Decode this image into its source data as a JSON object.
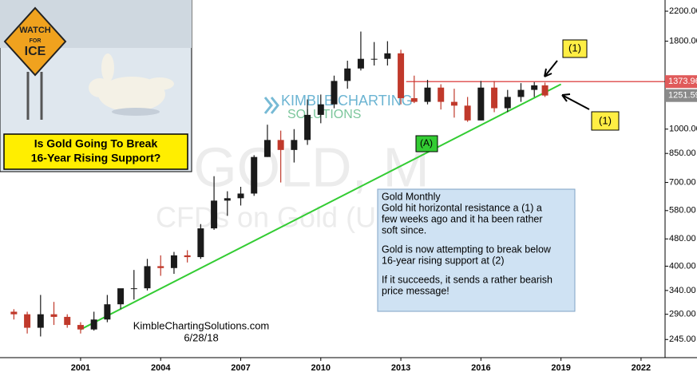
{
  "chart_data": {
    "type": "candlestick",
    "log_scale": true,
    "up_color": "#1a1a1a",
    "down_color": "#c0392b",
    "x": [
      1998.5,
      1999.0,
      1999.5,
      2000.0,
      2000.5,
      2001.0,
      2001.5,
      2002.0,
      2002.5,
      2003.0,
      2003.5,
      2004.0,
      2004.5,
      2005.0,
      2005.5,
      2006.0,
      2006.5,
      2007.0,
      2007.5,
      2008.0,
      2008.5,
      2009.0,
      2009.5,
      2010.0,
      2010.5,
      2011.0,
      2011.5,
      2012.0,
      2012.5,
      2013.0,
      2013.5,
      2014.0,
      2014.5,
      2015.0,
      2015.5,
      2016.0,
      2016.5,
      2017.0,
      2017.5,
      2018.0,
      2018.4
    ],
    "open": [
      295,
      290,
      265,
      290,
      285,
      270,
      262,
      280,
      310,
      345,
      345,
      400,
      395,
      430,
      425,
      515,
      620,
      630,
      650,
      830,
      930,
      870,
      930,
      1100,
      1180,
      1380,
      1500,
      1600,
      1600,
      1660,
      1230,
      1200,
      1320,
      1200,
      1170,
      1060,
      1320,
      1150,
      1240,
      1300,
      1340
    ],
    "high": [
      300,
      295,
      330,
      315,
      290,
      275,
      295,
      330,
      330,
      390,
      420,
      430,
      440,
      445,
      530,
      730,
      660,
      680,
      840,
      1030,
      990,
      1000,
      1220,
      1260,
      1430,
      1580,
      1920,
      1790,
      1800,
      1700,
      1430,
      1390,
      1350,
      1310,
      1240,
      1380,
      1380,
      1300,
      1360,
      1370,
      1365
    ],
    "low": [
      280,
      255,
      250,
      270,
      265,
      255,
      260,
      275,
      300,
      320,
      340,
      375,
      380,
      410,
      420,
      510,
      560,
      600,
      640,
      830,
      700,
      800,
      900,
      1040,
      1150,
      1310,
      1480,
      1530,
      1530,
      1180,
      1190,
      1180,
      1140,
      1080,
      1050,
      1060,
      1120,
      1120,
      1200,
      1240,
      1240
    ],
    "close": [
      290,
      265,
      290,
      285,
      270,
      262,
      280,
      310,
      345,
      345,
      400,
      395,
      430,
      425,
      515,
      620,
      630,
      650,
      830,
      930,
      870,
      930,
      1100,
      1180,
      1380,
      1500,
      1600,
      1600,
      1660,
      1230,
      1200,
      1320,
      1200,
      1170,
      1060,
      1320,
      1150,
      1240,
      1300,
      1340,
      1252
    ],
    "xlim": [
      1997.98,
      2022.9
    ],
    "ylim": [
      217,
      2371
    ],
    "xticks": [
      2001,
      2004,
      2007,
      2010,
      2013,
      2016,
      2019,
      2022
    ],
    "yticks": [
      {
        "value": 245,
        "label": "245.00"
      },
      {
        "value": 290,
        "label": "290.00"
      },
      {
        "value": 340,
        "label": "340.00"
      },
      {
        "value": 400,
        "label": "400.00"
      },
      {
        "value": 480,
        "label": "480.00"
      },
      {
        "value": 580,
        "label": "580.00"
      },
      {
        "value": 700,
        "label": "700.00"
      },
      {
        "value": 850,
        "label": "850.00"
      },
      {
        "value": 1000,
        "label": "1000.00"
      },
      {
        "value": 1800,
        "label": "1800.00"
      },
      {
        "value": 2200,
        "label": "2200.00"
      }
    ],
    "resistance": {
      "value": 1373.96,
      "start_x": 2013.2,
      "color": "#e05a5a"
    },
    "last_price": {
      "value": 1251.59,
      "color": "#8a8a8a"
    },
    "support": {
      "x": [
        2001.0,
        2019.0
      ],
      "y": [
        262,
        1350
      ],
      "color": "#33cc33"
    },
    "watermark": [
      "GOLD, M",
      "CFDs on Gold (U"
    ],
    "logo": [
      "KIMBLE CHARTING",
      "SOLUTIONS"
    ],
    "callouts": [
      "(1)",
      "(1)",
      "(A)"
    ],
    "title_box": [
      "Is Gold Going To Break",
      "16-Year Rising Support?"
    ],
    "sign": [
      "WATCH",
      "FOR",
      "ICE"
    ],
    "note": [
      [
        "Gold Monthly",
        "Gold hit horizontal resistance a (1) a",
        "few weeks ago and it ha been rather",
        "soft since."
      ],
      [
        "Gold is now attempting to break below",
        "16-year rising support at (2)"
      ],
      [
        "If it succeeds, it sends a rather bearish",
        "price message!"
      ]
    ],
    "source": [
      "KimbleChartingSolutions.com",
      "6/28/18"
    ]
  }
}
